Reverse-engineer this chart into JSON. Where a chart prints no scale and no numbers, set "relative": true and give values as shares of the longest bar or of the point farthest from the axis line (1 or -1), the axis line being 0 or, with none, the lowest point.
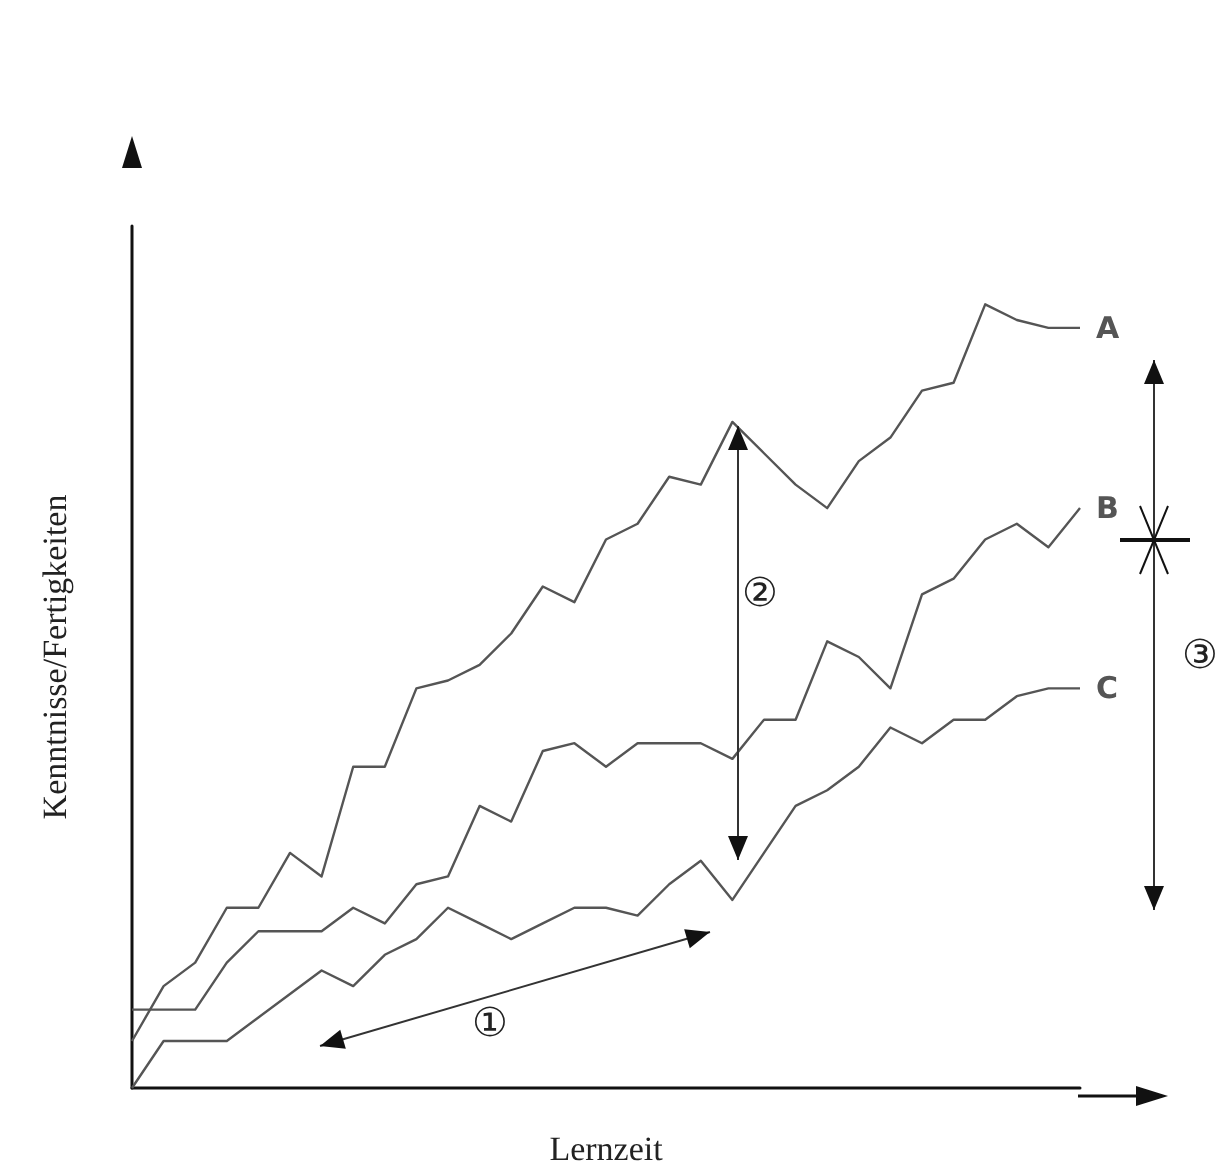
{
  "chart_data": {
    "type": "line",
    "relative": true,
    "xlabel": "Lernzeit",
    "ylabel": "Kenntnisse/Fertigkeiten",
    "grid": false,
    "legend": false,
    "marker": "none",
    "line_style": "solid",
    "annotations": [
      "①",
      "②",
      "③"
    ],
    "categories": [
      null,
      null,
      null,
      null,
      null,
      null,
      null,
      null,
      null,
      null,
      null,
      null,
      null,
      null,
      null,
      null,
      null,
      null,
      null,
      null,
      null,
      null,
      null,
      null,
      null,
      null,
      null,
      null,
      null,
      null,
      null
    ],
    "series": [
      {
        "name": "A",
        "color": "#555555",
        "values": [
          0.06,
          0.13,
          0.16,
          0.23,
          0.23,
          0.3,
          0.27,
          0.41,
          0.41,
          0.51,
          0.52,
          0.54,
          0.58,
          0.64,
          0.62,
          0.7,
          0.72,
          0.78,
          0.77,
          0.85,
          0.81,
          0.77,
          0.74,
          0.8,
          0.83,
          0.89,
          0.9,
          1.0,
          0.98,
          0.97,
          0.97
        ]
      },
      {
        "name": "B",
        "color": "#555555",
        "values": [
          0.1,
          0.1,
          0.1,
          0.16,
          0.2,
          0.2,
          0.2,
          0.23,
          0.21,
          0.26,
          0.27,
          0.36,
          0.34,
          0.43,
          0.44,
          0.41,
          0.44,
          0.44,
          0.44,
          0.42,
          0.47,
          0.47,
          0.57,
          0.55,
          0.51,
          0.63,
          0.65,
          0.7,
          0.72,
          0.69,
          0.74
        ]
      },
      {
        "name": "C",
        "color": "#555555",
        "values": [
          0.0,
          0.06,
          0.06,
          0.06,
          0.09,
          0.12,
          0.15,
          0.13,
          0.17,
          0.19,
          0.23,
          0.21,
          0.19,
          0.21,
          0.23,
          0.23,
          0.22,
          0.26,
          0.29,
          0.24,
          0.3,
          0.36,
          0.38,
          0.41,
          0.46,
          0.44,
          0.47,
          0.47,
          0.5,
          0.51,
          0.51
        ]
      }
    ]
  }
}
